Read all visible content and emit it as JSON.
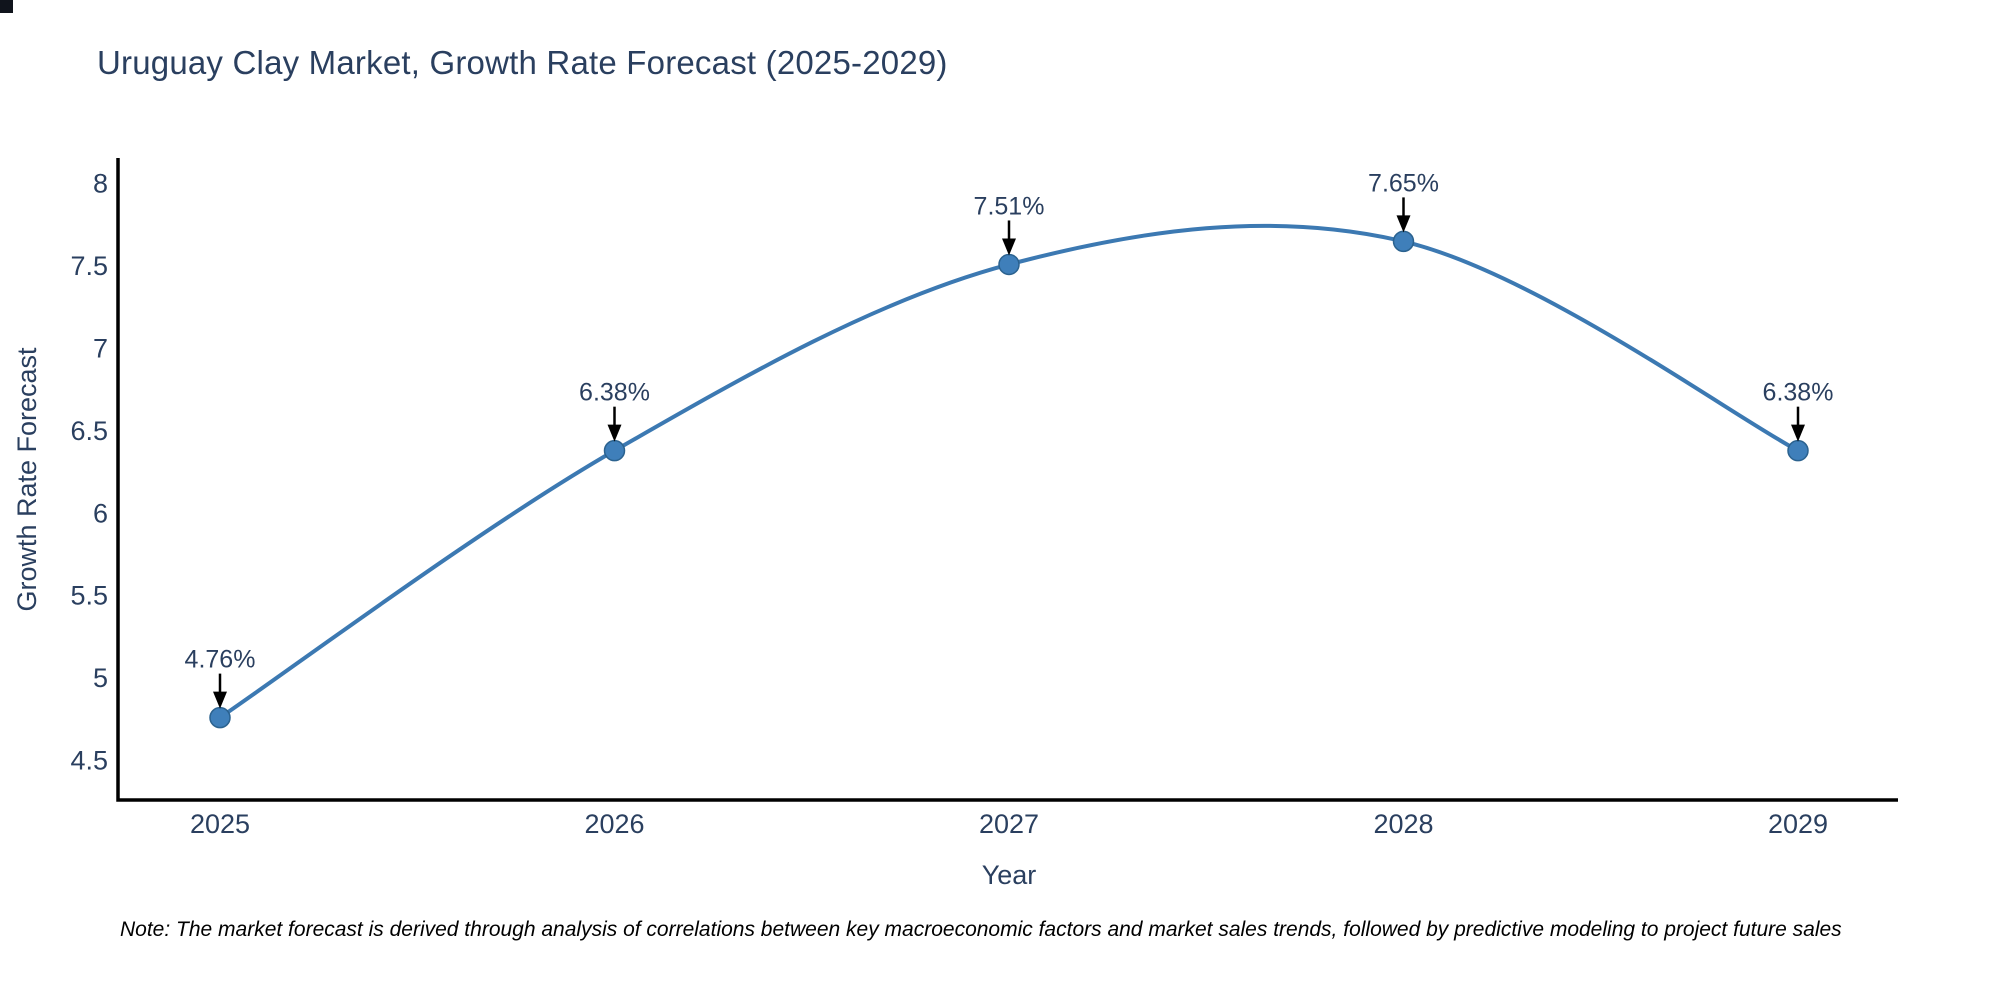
{
  "title": "Uruguay Clay Market, Growth Rate Forecast (2025-2029)",
  "note": "Note: The market forecast is derived through analysis of correlations between key macroeconomic factors and market sales trends, followed by predictive modeling to project future sales",
  "chart_data": {
    "type": "line",
    "title": "Uruguay Clay Market, Growth Rate Forecast (2025-2029)",
    "xlabel": "Year",
    "ylabel": "Growth Rate Forecast",
    "categories": [
      "2025",
      "2026",
      "2027",
      "2028",
      "2029"
    ],
    "values": [
      4.76,
      6.38,
      7.51,
      7.65,
      6.38
    ],
    "point_labels": [
      "4.76%",
      "6.38%",
      "7.51%",
      "7.65%",
      "6.38%"
    ],
    "yticks": [
      4.5,
      5,
      5.5,
      6,
      6.5,
      7,
      7.5,
      8
    ],
    "ylim": [
      4.26,
      8.15
    ],
    "line_shape": "spline",
    "grid": false,
    "legend": "none",
    "colors": {
      "line": "#3c79b2",
      "marker": "#3f7fba",
      "marker_edge": "#2b628f",
      "axis": "#000000",
      "tick_text": "#2a3f5f",
      "annotation_text": "#2a3f5f",
      "annotation_arrow": "#000000"
    }
  }
}
